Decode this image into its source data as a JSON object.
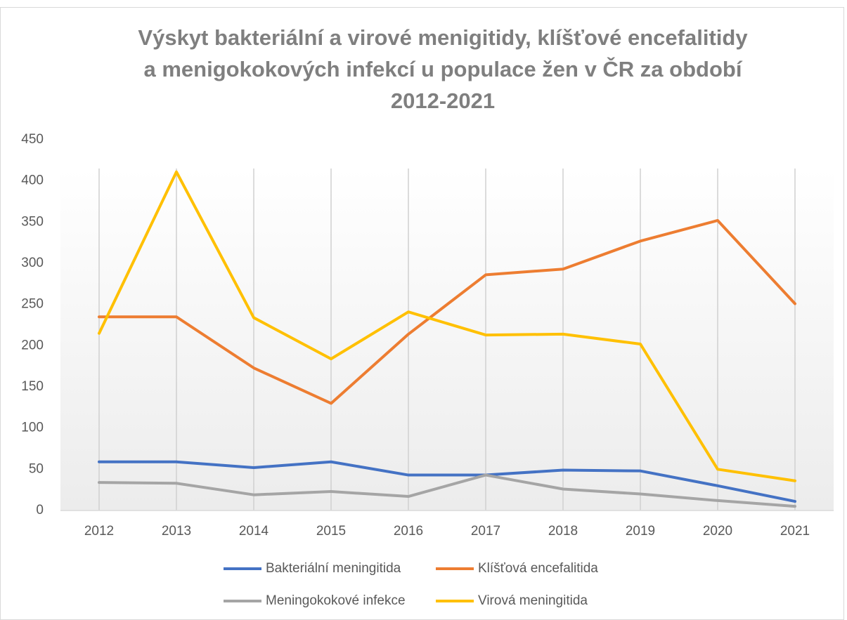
{
  "chart_data": {
    "type": "line",
    "title": [
      "Výskyt bakteriální a virové menigitidy, klíšťové encefalitidy",
      "a menigokokových infekcí u populace žen v ČR za období",
      "2012-2021"
    ],
    "categories": [
      "2012",
      "2013",
      "2014",
      "2015",
      "2016",
      "2017",
      "2018",
      "2019",
      "2020",
      "2021"
    ],
    "series": [
      {
        "name": "Bakteriální meningitida",
        "color": "#4472c4",
        "values": [
          59,
          59,
          52,
          59,
          43,
          43,
          49,
          48,
          30,
          11
        ]
      },
      {
        "name": "Klíšťová encefalitida",
        "color": "#ed7d31",
        "values": [
          235,
          235,
          173,
          130,
          214,
          286,
          293,
          327,
          352,
          251
        ]
      },
      {
        "name": "Meningokokové infekce",
        "color": "#a5a5a5",
        "values": [
          34,
          33,
          19,
          23,
          17,
          43,
          26,
          20,
          12,
          5
        ]
      },
      {
        "name": "Virová meningitida",
        "color": "#ffc000",
        "values": [
          215,
          411,
          234,
          184,
          241,
          213,
          214,
          202,
          50,
          36
        ]
      }
    ],
    "ylim": [
      0,
      450
    ],
    "yticks": [
      0,
      50,
      100,
      150,
      200,
      250,
      300,
      350,
      400,
      450
    ],
    "grid": "x",
    "legend": "bottom"
  }
}
